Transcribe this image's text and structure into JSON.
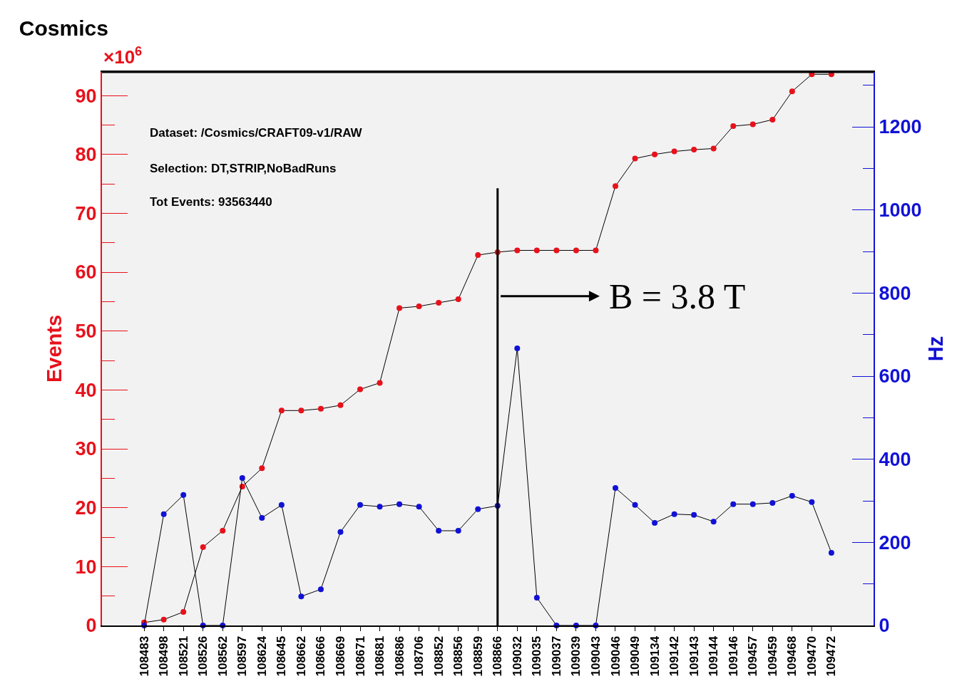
{
  "chart_data": {
    "type": "line",
    "title": "Cosmics",
    "ylabel": "Events",
    "y2label": "Hz",
    "categories": [
      "108483",
      "108498",
      "108521",
      "108526",
      "108562",
      "108597",
      "108624",
      "108645",
      "108662",
      "108666",
      "108669",
      "108671",
      "108681",
      "108686",
      "108706",
      "108852",
      "108856",
      "108859",
      "108866",
      "109032",
      "109035",
      "109037",
      "109039",
      "109043",
      "109046",
      "109049",
      "109134",
      "109142",
      "109143",
      "109144",
      "109146",
      "109457",
      "109459",
      "109468",
      "109470",
      "109472"
    ],
    "series": [
      {
        "color": "#e8111b",
        "values": [
          0.5,
          1.0,
          2.3,
          13.3,
          16.1,
          23.6,
          26.7,
          36.5,
          36.5,
          36.8,
          37.4,
          40.1,
          41.2,
          53.9,
          54.2,
          54.8,
          55.4,
          62.9,
          63.4,
          63.7,
          63.7,
          63.7,
          63.7,
          63.7,
          74.6,
          79.3,
          80.0,
          80.5,
          80.8,
          81.0,
          84.8,
          85.1,
          85.9,
          90.7,
          93.6,
          93.6
        ]
      },
      {
        "color": "#1111d6",
        "axis": "y2",
        "values": [
          0,
          268,
          314,
          0,
          0,
          355,
          259,
          290,
          70,
          87,
          225,
          290,
          286,
          292,
          286,
          228,
          228,
          280,
          288,
          667,
          67,
          0,
          0,
          0,
          331,
          290,
          247,
          268,
          266,
          250,
          292,
          292,
          295,
          312,
          297,
          175
        ]
      }
    ],
    "ylim": [
      0,
      94
    ],
    "yticks": [
      0,
      10,
      20,
      30,
      40,
      50,
      60,
      70,
      80,
      90
    ],
    "y2lim": [
      0,
      1332
    ],
    "y2ticks": [
      0,
      200,
      400,
      600,
      800,
      1000,
      1200
    ],
    "ref_lines": [
      {
        "axis": "x",
        "value": "108866",
        "label": "B = 3.8 T",
        "color": "#000000"
      }
    ],
    "annotations": [
      "×10$^{6}$",
      "Dataset: /Cosmics/CRAFT09-v1/RAW",
      "Selection: DT,STRIP,NoBadRuns",
      "Tot Events: 93563440"
    ],
    "marker": "circle",
    "grid": false
  }
}
